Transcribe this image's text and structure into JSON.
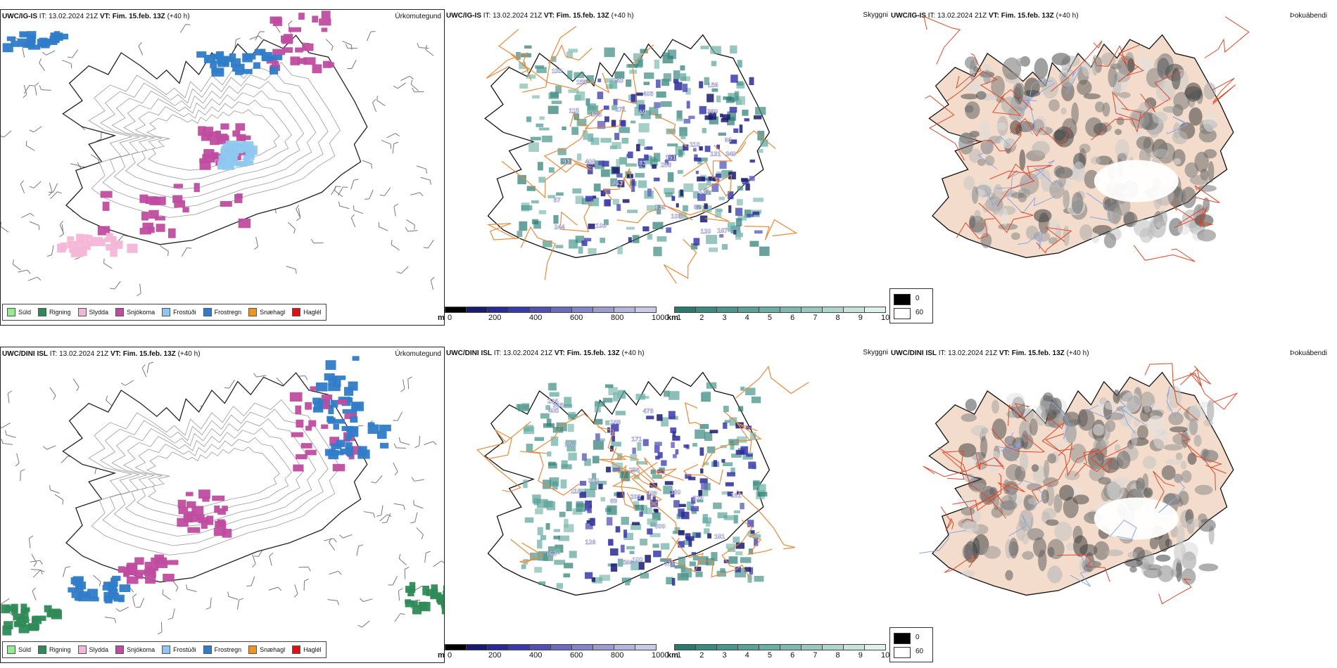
{
  "rows": [
    {
      "id": "row1",
      "precip": {
        "model": "UWC/IG-IS",
        "it_label": "IT:",
        "it_value": "13.02.2024 21Z",
        "vt_label": "VT:",
        "vt_value": "Fim. 15.feb. 13Z",
        "lead": "(+40 h)",
        "right_title": "Úrkomutegund"
      },
      "cloud": {
        "model": "UWC/IG-IS",
        "it_label": "IT:",
        "it_value": "13.02.2024 21Z",
        "vt_label": "VT:",
        "vt_value": "Fim. 15.feb. 13Z",
        "lead": "(+40 h)",
        "right_title": "Skyggni",
        "numbers": [
          "244",
          "360",
          "87",
          "82",
          "103",
          "131",
          "115",
          "131",
          "110",
          "83",
          "66",
          "103",
          "155",
          "133",
          "151",
          "403",
          "103",
          "408",
          "156",
          "349",
          "263",
          "59",
          "243",
          "271",
          "120",
          "187",
          "208",
          "93",
          "131"
        ]
      },
      "fog": {
        "model": "UWC/IG-IS",
        "it_label": "IT:",
        "it_value": "13.02.2024 21Z",
        "vt_label": "VT:",
        "vt_value": "Fim. 15.feb. 13Z",
        "lead": "(+40 h)",
        "right_title": "Þokuábendi"
      }
    },
    {
      "id": "row2",
      "precip": {
        "model": "UWC/DINI ISL",
        "it_label": "IT:",
        "it_value": "13.02.2024 21Z",
        "vt_label": "VT:",
        "vt_value": "Fim. 15.feb. 13Z",
        "lead": "(+40 h)",
        "right_title": "Úrkomutegund"
      },
      "cloud": {
        "model": "UWC/DINI ISL",
        "it_label": "IT:",
        "it_value": "13.02.2024 21Z",
        "vt_label": "VT:",
        "vt_value": "Fim. 15.feb. 13Z",
        "lead": "(+40 h)",
        "right_title": "Skyggni",
        "numbers": [
          "473",
          "478",
          "329",
          "300",
          "380",
          "168",
          "566",
          "203",
          "234",
          "102",
          "300",
          "118",
          "365",
          "69",
          "405",
          "409",
          "107",
          "163",
          "126",
          "181",
          "256",
          "171",
          "161"
        ]
      },
      "fog": {
        "model": "UWC/DINI ISL",
        "it_label": "IT:",
        "it_value": "13.02.2024 21Z",
        "vt_label": "VT:",
        "vt_value": "Fim. 15.feb. 13Z",
        "lead": "(+40 h)",
        "right_title": "Þokuábendi"
      }
    }
  ],
  "precip_legend": [
    {
      "label": "Súld",
      "color": "#90ee90"
    },
    {
      "label": "Rigning",
      "color": "#2e8b57"
    },
    {
      "label": "Slydda",
      "color": "#f4b6d8"
    },
    {
      "label": "Snjókoma",
      "color": "#c04ca0"
    },
    {
      "label": "Frostúði",
      "color": "#8ec8f0"
    },
    {
      "label": "Frostregn",
      "color": "#2f7cc8"
    },
    {
      "label": "Snæhagl",
      "color": "#f0941e"
    },
    {
      "label": "Haglél",
      "color": "#e01010"
    }
  ],
  "cloud_base_bar": {
    "unit": "m",
    "ticks": [
      "0",
      "200",
      "400",
      "600",
      "800",
      "1000"
    ],
    "colors": [
      "#000000",
      "#1a1a6e",
      "#2a2a96",
      "#3a3aaa",
      "#5050b4",
      "#6a6abe",
      "#8484c8",
      "#9c9cd2",
      "#b4b4dc",
      "#cacae6"
    ]
  },
  "visibility_bar": {
    "unit": "km",
    "ticks": [
      "1",
      "2",
      "3",
      "4",
      "5",
      "6",
      "7",
      "8",
      "9",
      "10"
    ],
    "colors": [
      "#2a7a70",
      "#3a8a80",
      "#4a968c",
      "#5aa298",
      "#6aaea4",
      "#80baaf",
      "#98c8bd",
      "#b0d6cc",
      "#c8e3da",
      "#e0f0ea"
    ]
  },
  "fog_legend": {
    "dark_value": "0",
    "light_value": "60"
  },
  "colors": {
    "roads": "#e8893a",
    "fog_land": "#f3dccb",
    "fog_roads": "#e0462a",
    "rivers": "#8aa6e0"
  }
}
